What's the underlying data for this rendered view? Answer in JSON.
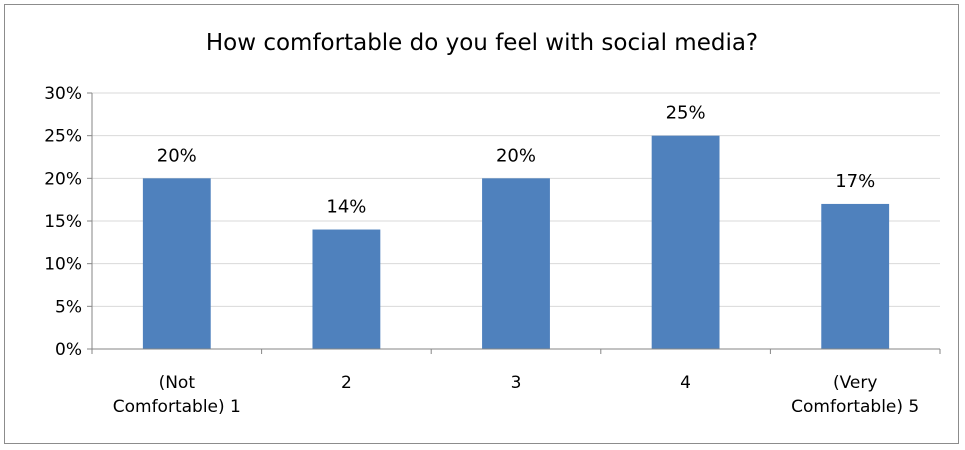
{
  "chart_data": {
    "type": "bar",
    "title": "How comfortable do you feel with social media?",
    "categories": [
      [
        "(Not",
        "Comfortable) 1"
      ],
      [
        "2"
      ],
      [
        "3"
      ],
      [
        "4"
      ],
      [
        "(Very",
        "Comfortable) 5"
      ]
    ],
    "values": [
      20,
      14,
      20,
      25,
      17
    ],
    "value_labels": [
      "20%",
      "14%",
      "20%",
      "25%",
      "17%"
    ],
    "ylim": [
      0,
      30
    ],
    "yticks": [
      "0%",
      "5%",
      "10%",
      "15%",
      "20%",
      "25%",
      "30%"
    ],
    "grid": true,
    "legend": "none",
    "bar_color": "#4f81bd",
    "grid_color": "#d9d9d9",
    "axis_color": "#868686"
  }
}
